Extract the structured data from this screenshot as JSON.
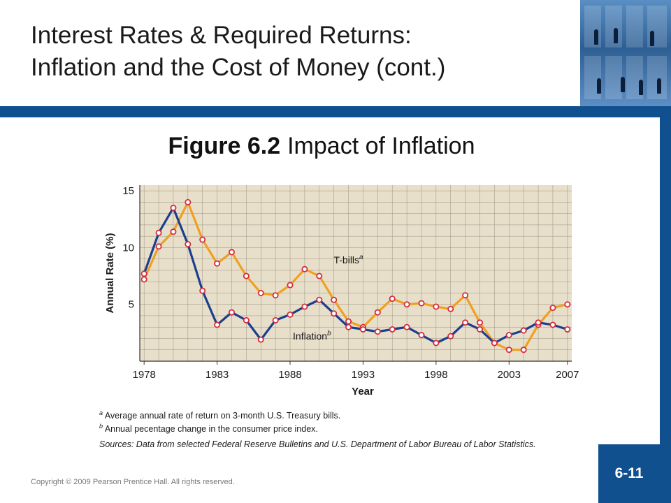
{
  "slide": {
    "title_line1": "Interest Rates & Required Returns:",
    "title_line2": "Inflation and the Cost of Money (cont.)",
    "figure_label": "Figure 6.2",
    "figure_title": "Impact of Inflation",
    "note_a_marker": "a",
    "note_a": "Average annual rate of return on 3-month U.S. Treasury bills.",
    "note_b_marker": "b",
    "note_b": "Annual pecentage change in the consumer price index.",
    "sources": "Sources: Data from selected Federal Reserve Bulletins and U.S. Department of Labor Bureau of Labor Statistics.",
    "copyright": "Copyright © 2009 Pearson Prentice Hall. All rights reserved.",
    "page_number": "6-11"
  },
  "colors": {
    "brand_blue": "#10508f",
    "tbills_line": "#f0a020",
    "inflation_line": "#1b3f8f",
    "marker": "#d42d3c",
    "plot_bg": "#e8dfca",
    "grid": "#9a9180"
  },
  "chart_data": {
    "type": "line",
    "xlabel": "Year",
    "ylabel": "Annual Rate (%)",
    "xlim": [
      1978,
      2007
    ],
    "ylim": [
      0,
      15.5
    ],
    "xticks": [
      1978,
      1983,
      1988,
      1993,
      1998,
      2003,
      2007
    ],
    "yticks": [
      5,
      10,
      15
    ],
    "grid": true,
    "series": [
      {
        "name": "T-bills",
        "superscript": "a",
        "color": "#f0a020",
        "x": [
          1978,
          1979,
          1980,
          1981,
          1982,
          1983,
          1984,
          1985,
          1986,
          1987,
          1988,
          1989,
          1990,
          1991,
          1992,
          1993,
          1994,
          1995,
          1996,
          1997,
          1998,
          1999,
          2000,
          2001,
          2002,
          2003,
          2004,
          2005,
          2006,
          2007
        ],
        "y": [
          7.2,
          10.1,
          11.4,
          14.0,
          10.7,
          8.6,
          9.6,
          7.5,
          6.0,
          5.8,
          6.7,
          8.1,
          7.5,
          5.4,
          3.5,
          3.0,
          4.3,
          5.5,
          5.0,
          5.1,
          4.8,
          4.6,
          5.8,
          3.4,
          1.6,
          1.0,
          1.0,
          3.2,
          4.7,
          5.0
        ]
      },
      {
        "name": "Inflation",
        "superscript": "b",
        "color": "#1b3f8f",
        "x": [
          1978,
          1979,
          1980,
          1981,
          1982,
          1983,
          1984,
          1985,
          1986,
          1987,
          1988,
          1989,
          1990,
          1991,
          1992,
          1993,
          1994,
          1995,
          1996,
          1997,
          1998,
          1999,
          2000,
          2001,
          2002,
          2003,
          2004,
          2005,
          2006,
          2007
        ],
        "y": [
          7.7,
          11.3,
          13.5,
          10.3,
          6.2,
          3.2,
          4.3,
          3.6,
          1.9,
          3.6,
          4.1,
          4.8,
          5.4,
          4.2,
          3.0,
          2.8,
          2.6,
          2.8,
          3.0,
          2.3,
          1.6,
          2.2,
          3.4,
          2.8,
          1.6,
          2.3,
          2.7,
          3.4,
          3.2,
          2.8
        ]
      }
    ]
  }
}
